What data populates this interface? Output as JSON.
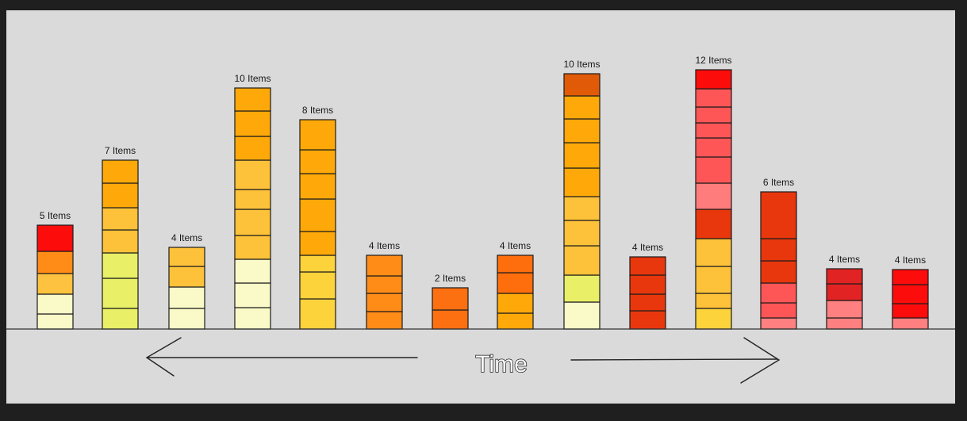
{
  "axis": {
    "label": "Time"
  },
  "stacks": [
    {
      "label": "5 Items",
      "blocks": [
        "#fafac8",
        "#fafac8",
        "#fdc340",
        "#fe8c17",
        "#fd0c0c"
      ]
    },
    {
      "label": "7 Items",
      "blocks": [
        "#e9ef66",
        "#e9ef66",
        "#e9ef66",
        "#fdc23a",
        "#fdc23a",
        "#fea909",
        "#fea909"
      ]
    },
    {
      "label": "4 Items",
      "blocks": [
        "#fafac8",
        "#fafac8",
        "#fdc23a",
        "#fdc23a"
      ]
    },
    {
      "label": "10 Items",
      "blocks": [
        "#fafac8",
        "#fafac8",
        "#fafac8",
        "#fdc23a",
        "#fdc23a",
        "#fdc23a",
        "#fdc23a",
        "#fea909",
        "#fea909",
        "#fea909"
      ]
    },
    {
      "label": "8 Items",
      "blocks": [
        "#fdd33c",
        "#fdd33c",
        "#fdd33c",
        "#fea909",
        "#fea909",
        "#fea909",
        "#fea909",
        "#fea909"
      ]
    },
    {
      "label": "4 Items",
      "blocks": [
        "#fe8c17",
        "#fe8c17",
        "#fe8c17",
        "#fe8c17"
      ]
    },
    {
      "label": "2 Items",
      "blocks": [
        "#fd7012",
        "#fd7012"
      ]
    },
    {
      "label": "4 Items",
      "blocks": [
        "#fea909",
        "#fea909",
        "#fe6e0c",
        "#fe6e0c"
      ]
    },
    {
      "label": "10 Items",
      "blocks": [
        "#fafac8",
        "#e9ef66",
        "#fdc23a",
        "#fdc23a",
        "#fdc23a",
        "#fea909",
        "#fea909",
        "#fea909",
        "#fea909",
        "#e05a07"
      ]
    },
    {
      "label": "4 Items",
      "blocks": [
        "#e8370d",
        "#e8370d",
        "#e8370d",
        "#e8370d"
      ]
    },
    {
      "label": "12 Items",
      "blocks": [
        "#fdd33c",
        "#fdc23a",
        "#fdc23a",
        "#fdc23a",
        "#e8370d",
        "#fe7c7c",
        "#fe5656",
        "#fe5656",
        "#fe5656",
        "#fe5656",
        "#fe5656",
        "#fd0c0c"
      ]
    },
    {
      "label": "6 Items",
      "blocks": [
        "#fe8080",
        "#fe5656",
        "#fe5656",
        "#e8370d",
        "#e8370d",
        "#e8370d"
      ]
    },
    {
      "label": "4 Items",
      "blocks": [
        "#fe8080",
        "#fe8080",
        "#e22323",
        "#e22323"
      ]
    },
    {
      "label": "4 Items",
      "blocks": [
        "#fe8080",
        "#fd0c0c",
        "#fd0c0c",
        "#fd0c0c"
      ]
    }
  ]
}
